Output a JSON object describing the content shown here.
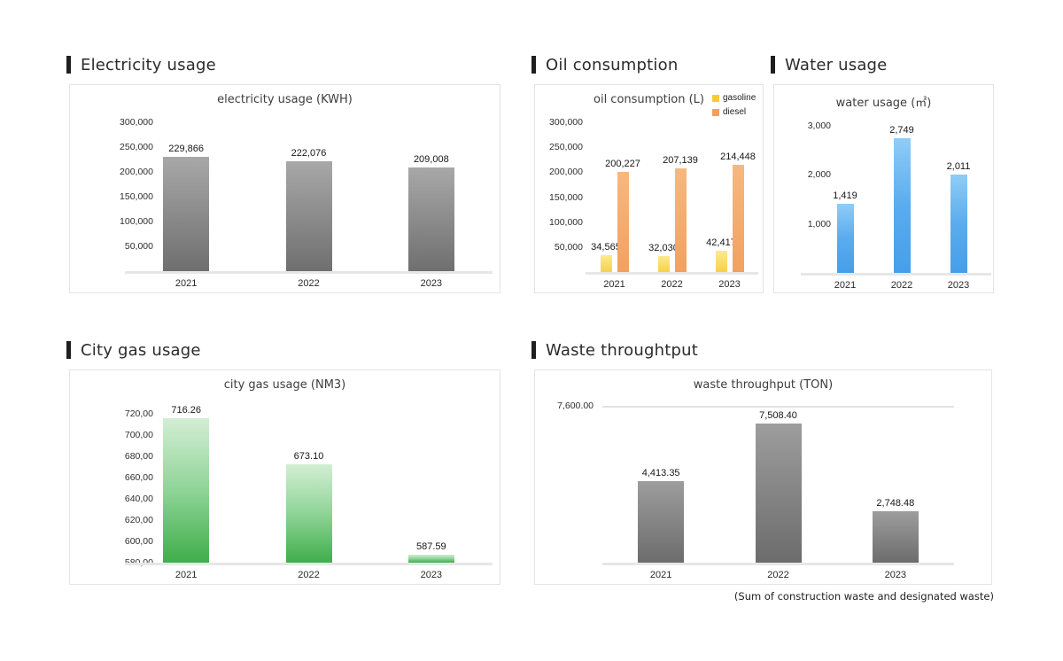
{
  "page": {
    "background": "#ffffff"
  },
  "sections": [
    {
      "id": "electricity",
      "header": "Electricity usage"
    },
    {
      "id": "oil",
      "header": "Oil consumption"
    },
    {
      "id": "water",
      "header": "Water usage"
    },
    {
      "id": "citygas",
      "header": "City gas usage"
    },
    {
      "id": "waste",
      "header": "Waste throughtput",
      "footnote": "(Sum of construction waste and designated waste)"
    }
  ],
  "chart_data": [
    {
      "id": "electricity",
      "type": "bar",
      "title": "electricity usage (KWH)",
      "categories": [
        "2021",
        "2022",
        "2023"
      ],
      "values": [
        229866,
        222076,
        209008
      ],
      "value_labels": [
        "229,866",
        "222,076",
        "209,008"
      ],
      "ylim": [
        0,
        312500
      ],
      "yticks": [
        {
          "v": 50000,
          "label": "50,000"
        },
        {
          "v": 100000,
          "label": "100,000"
        },
        {
          "v": 150000,
          "label": "150,000"
        },
        {
          "v": 200000,
          "label": "200,000"
        },
        {
          "v": 250000,
          "label": "250,000"
        },
        {
          "v": 300000,
          "label": "300,000"
        }
      ],
      "grid": false,
      "bar_gradient": [
        "#a8a8a8",
        "#6f6f6f"
      ]
    },
    {
      "id": "oil",
      "type": "bar",
      "title": "oil consumption (L)",
      "categories": [
        "2021",
        "2022",
        "2023"
      ],
      "series": [
        {
          "name": "gasoline",
          "values": [
            34565,
            32030,
            42417
          ],
          "value_labels": [
            "34,565",
            "32,030",
            "42,417"
          ],
          "gradient": [
            "#fce98e",
            "#f8d04b"
          ],
          "legend_color": "#fcca35"
        },
        {
          "name": "diesel",
          "values": [
            200227,
            207139,
            214448
          ],
          "value_labels": [
            "200,227",
            "207,139",
            "214,448"
          ],
          "gradient": [
            "#f6b87f",
            "#f2a160"
          ],
          "legend_color": "#f59e58"
        }
      ],
      "ylim": [
        0,
        312500
      ],
      "yticks": [
        {
          "v": 50000,
          "label": "50,000"
        },
        {
          "v": 100000,
          "label": "100,000"
        },
        {
          "v": 150000,
          "label": "150,000"
        },
        {
          "v": 200000,
          "label": "200,000"
        },
        {
          "v": 250000,
          "label": "250,000"
        },
        {
          "v": 300000,
          "label": "300,000"
        }
      ],
      "grid": false,
      "legend_position": "top-right"
    },
    {
      "id": "water",
      "type": "bar",
      "title": "water usage (㎡)",
      "categories": [
        "2021",
        "2022",
        "2023"
      ],
      "values": [
        1419,
        2749,
        2011
      ],
      "value_labels": [
        "1,419",
        "2,749",
        "2,011"
      ],
      "ylim": [
        0,
        3200
      ],
      "yticks": [
        {
          "v": 1000,
          "label": "1,000"
        },
        {
          "v": 2000,
          "label": "2,000"
        },
        {
          "v": 3000,
          "label": "3,000"
        }
      ],
      "grid": false,
      "bar_gradient": [
        "#8ecdf8",
        "#5aacee",
        "#459fe9"
      ]
    },
    {
      "id": "citygas",
      "type": "bar",
      "title": "city gas usage (NM3)",
      "categories": [
        "2021",
        "2022",
        "2023"
      ],
      "values": [
        716.26,
        673.1,
        587.59
      ],
      "value_labels": [
        "716.26",
        "673.10",
        "587.59"
      ],
      "ylim": [
        580,
        732
      ],
      "yticks": [
        {
          "v": 580,
          "label": "580,00"
        },
        {
          "v": 600,
          "label": "600,00"
        },
        {
          "v": 620,
          "label": "620,00"
        },
        {
          "v": 640,
          "label": "640,00"
        },
        {
          "v": 660,
          "label": "660,00"
        },
        {
          "v": 680,
          "label": "680,00"
        },
        {
          "v": 700,
          "label": "700,00"
        },
        {
          "v": 720,
          "label": "720,00"
        }
      ],
      "grid": false,
      "bar_gradient": [
        "#d3eed3",
        "#8fd497",
        "#3fae4a"
      ]
    },
    {
      "id": "waste",
      "type": "bar",
      "title": "waste throughput (TON)",
      "categories": [
        "2021",
        "2022",
        "2023"
      ],
      "values": [
        4413.35,
        7508.4,
        2748.48
      ],
      "value_labels": [
        "4,413.35",
        "7,508.40",
        "2,748.48"
      ],
      "ylim": [
        0,
        8450
      ],
      "yticks": [],
      "top_gridline": {
        "v": 7600,
        "label": "7,600.00"
      },
      "grid": false,
      "bar_gradient": [
        "#9d9d9d",
        "#6c6c6c"
      ]
    }
  ]
}
